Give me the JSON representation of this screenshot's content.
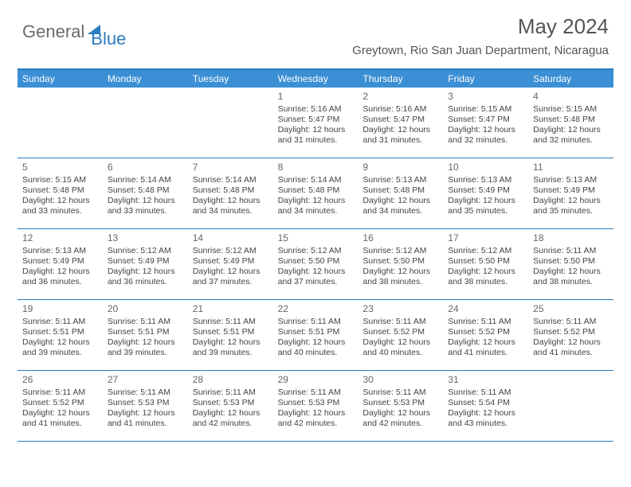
{
  "logo": {
    "part1": "General",
    "part2": "Blue"
  },
  "title": "May 2024",
  "location": "Greytown, Rio San Juan Department, Nicaragua",
  "day_names": [
    "Sunday",
    "Monday",
    "Tuesday",
    "Wednesday",
    "Thursday",
    "Friday",
    "Saturday"
  ],
  "colors": {
    "header_bg": "#3b8fd4",
    "header_border": "#2a7bbf",
    "text": "#444444",
    "title_text": "#555555"
  },
  "weeks": [
    [
      null,
      null,
      null,
      {
        "n": "1",
        "sr": "Sunrise: 5:16 AM",
        "ss": "Sunset: 5:47 PM",
        "dl1": "Daylight: 12 hours",
        "dl2": "and 31 minutes."
      },
      {
        "n": "2",
        "sr": "Sunrise: 5:16 AM",
        "ss": "Sunset: 5:47 PM",
        "dl1": "Daylight: 12 hours",
        "dl2": "and 31 minutes."
      },
      {
        "n": "3",
        "sr": "Sunrise: 5:15 AM",
        "ss": "Sunset: 5:47 PM",
        "dl1": "Daylight: 12 hours",
        "dl2": "and 32 minutes."
      },
      {
        "n": "4",
        "sr": "Sunrise: 5:15 AM",
        "ss": "Sunset: 5:48 PM",
        "dl1": "Daylight: 12 hours",
        "dl2": "and 32 minutes."
      }
    ],
    [
      {
        "n": "5",
        "sr": "Sunrise: 5:15 AM",
        "ss": "Sunset: 5:48 PM",
        "dl1": "Daylight: 12 hours",
        "dl2": "and 33 minutes."
      },
      {
        "n": "6",
        "sr": "Sunrise: 5:14 AM",
        "ss": "Sunset: 5:48 PM",
        "dl1": "Daylight: 12 hours",
        "dl2": "and 33 minutes."
      },
      {
        "n": "7",
        "sr": "Sunrise: 5:14 AM",
        "ss": "Sunset: 5:48 PM",
        "dl1": "Daylight: 12 hours",
        "dl2": "and 34 minutes."
      },
      {
        "n": "8",
        "sr": "Sunrise: 5:14 AM",
        "ss": "Sunset: 5:48 PM",
        "dl1": "Daylight: 12 hours",
        "dl2": "and 34 minutes."
      },
      {
        "n": "9",
        "sr": "Sunrise: 5:13 AM",
        "ss": "Sunset: 5:48 PM",
        "dl1": "Daylight: 12 hours",
        "dl2": "and 34 minutes."
      },
      {
        "n": "10",
        "sr": "Sunrise: 5:13 AM",
        "ss": "Sunset: 5:49 PM",
        "dl1": "Daylight: 12 hours",
        "dl2": "and 35 minutes."
      },
      {
        "n": "11",
        "sr": "Sunrise: 5:13 AM",
        "ss": "Sunset: 5:49 PM",
        "dl1": "Daylight: 12 hours",
        "dl2": "and 35 minutes."
      }
    ],
    [
      {
        "n": "12",
        "sr": "Sunrise: 5:13 AM",
        "ss": "Sunset: 5:49 PM",
        "dl1": "Daylight: 12 hours",
        "dl2": "and 36 minutes."
      },
      {
        "n": "13",
        "sr": "Sunrise: 5:12 AM",
        "ss": "Sunset: 5:49 PM",
        "dl1": "Daylight: 12 hours",
        "dl2": "and 36 minutes."
      },
      {
        "n": "14",
        "sr": "Sunrise: 5:12 AM",
        "ss": "Sunset: 5:49 PM",
        "dl1": "Daylight: 12 hours",
        "dl2": "and 37 minutes."
      },
      {
        "n": "15",
        "sr": "Sunrise: 5:12 AM",
        "ss": "Sunset: 5:50 PM",
        "dl1": "Daylight: 12 hours",
        "dl2": "and 37 minutes."
      },
      {
        "n": "16",
        "sr": "Sunrise: 5:12 AM",
        "ss": "Sunset: 5:50 PM",
        "dl1": "Daylight: 12 hours",
        "dl2": "and 38 minutes."
      },
      {
        "n": "17",
        "sr": "Sunrise: 5:12 AM",
        "ss": "Sunset: 5:50 PM",
        "dl1": "Daylight: 12 hours",
        "dl2": "and 38 minutes."
      },
      {
        "n": "18",
        "sr": "Sunrise: 5:11 AM",
        "ss": "Sunset: 5:50 PM",
        "dl1": "Daylight: 12 hours",
        "dl2": "and 38 minutes."
      }
    ],
    [
      {
        "n": "19",
        "sr": "Sunrise: 5:11 AM",
        "ss": "Sunset: 5:51 PM",
        "dl1": "Daylight: 12 hours",
        "dl2": "and 39 minutes."
      },
      {
        "n": "20",
        "sr": "Sunrise: 5:11 AM",
        "ss": "Sunset: 5:51 PM",
        "dl1": "Daylight: 12 hours",
        "dl2": "and 39 minutes."
      },
      {
        "n": "21",
        "sr": "Sunrise: 5:11 AM",
        "ss": "Sunset: 5:51 PM",
        "dl1": "Daylight: 12 hours",
        "dl2": "and 39 minutes."
      },
      {
        "n": "22",
        "sr": "Sunrise: 5:11 AM",
        "ss": "Sunset: 5:51 PM",
        "dl1": "Daylight: 12 hours",
        "dl2": "and 40 minutes."
      },
      {
        "n": "23",
        "sr": "Sunrise: 5:11 AM",
        "ss": "Sunset: 5:52 PM",
        "dl1": "Daylight: 12 hours",
        "dl2": "and 40 minutes."
      },
      {
        "n": "24",
        "sr": "Sunrise: 5:11 AM",
        "ss": "Sunset: 5:52 PM",
        "dl1": "Daylight: 12 hours",
        "dl2": "and 41 minutes."
      },
      {
        "n": "25",
        "sr": "Sunrise: 5:11 AM",
        "ss": "Sunset: 5:52 PM",
        "dl1": "Daylight: 12 hours",
        "dl2": "and 41 minutes."
      }
    ],
    [
      {
        "n": "26",
        "sr": "Sunrise: 5:11 AM",
        "ss": "Sunset: 5:52 PM",
        "dl1": "Daylight: 12 hours",
        "dl2": "and 41 minutes."
      },
      {
        "n": "27",
        "sr": "Sunrise: 5:11 AM",
        "ss": "Sunset: 5:53 PM",
        "dl1": "Daylight: 12 hours",
        "dl2": "and 41 minutes."
      },
      {
        "n": "28",
        "sr": "Sunrise: 5:11 AM",
        "ss": "Sunset: 5:53 PM",
        "dl1": "Daylight: 12 hours",
        "dl2": "and 42 minutes."
      },
      {
        "n": "29",
        "sr": "Sunrise: 5:11 AM",
        "ss": "Sunset: 5:53 PM",
        "dl1": "Daylight: 12 hours",
        "dl2": "and 42 minutes."
      },
      {
        "n": "30",
        "sr": "Sunrise: 5:11 AM",
        "ss": "Sunset: 5:53 PM",
        "dl1": "Daylight: 12 hours",
        "dl2": "and 42 minutes."
      },
      {
        "n": "31",
        "sr": "Sunrise: 5:11 AM",
        "ss": "Sunset: 5:54 PM",
        "dl1": "Daylight: 12 hours",
        "dl2": "and 43 minutes."
      },
      null
    ]
  ]
}
